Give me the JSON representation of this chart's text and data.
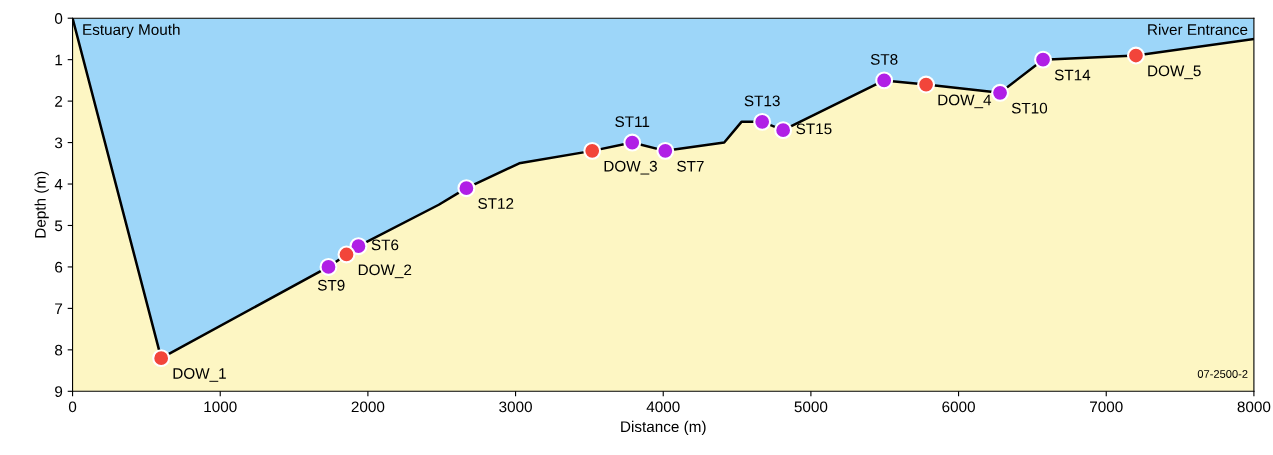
{
  "chart_data": {
    "type": "area",
    "xlabel": "Distance (m)",
    "ylabel": "Depth (m)",
    "xlim": [
      0,
      8000
    ],
    "ylim": [
      9,
      0
    ],
    "xticks": [
      0,
      1000,
      2000,
      3000,
      4000,
      5000,
      6000,
      7000,
      8000
    ],
    "yticks": [
      0,
      1,
      2,
      3,
      4,
      5,
      6,
      7,
      8,
      9
    ],
    "grid": false,
    "series": [
      {
        "color": "#9dd6f9",
        "x": [
          0,
          600,
          1733,
          1855,
          1936,
          2480,
          2667,
          3025,
          3519,
          3790,
          4014,
          4413,
          4530,
          4670,
          4812,
          5496,
          5780,
          6281,
          6572,
          7201,
          8000
        ],
        "values": [
          0,
          8.2,
          6.0,
          5.7,
          5.5,
          4.5,
          4.1,
          3.5,
          3.2,
          3.0,
          3.2,
          3.0,
          2.5,
          2.5,
          2.7,
          1.5,
          1.6,
          1.8,
          1.0,
          0.9,
          0.5
        ]
      },
      {
        "type": "scatter",
        "color": "#b01fe6",
        "x": [
          1733,
          1936,
          2667,
          3790,
          4014,
          4670,
          4812,
          5496,
          6281,
          6572
        ],
        "values": [
          6.0,
          5.5,
          4.1,
          3.0,
          3.2,
          2.5,
          2.7,
          1.5,
          1.8,
          1.0
        ]
      },
      {
        "type": "scatter",
        "color": "#f2453a",
        "x": [
          600,
          1855,
          3519,
          5780,
          7201
        ],
        "values": [
          8.2,
          5.7,
          3.2,
          1.6,
          0.9
        ]
      }
    ],
    "annotations": [
      "Estuary Mouth",
      "River Entrance",
      "07-2500-2",
      {
        "text": "ST9",
        "x": 1733,
        "y": 6.0
      },
      {
        "text": "ST6",
        "x": 1936,
        "y": 5.5
      },
      {
        "text": "ST12",
        "x": 2667,
        "y": 4.1
      },
      {
        "text": "ST11",
        "x": 3790,
        "y": 3.0
      },
      {
        "text": "ST7",
        "x": 4014,
        "y": 3.2
      },
      {
        "text": "ST13",
        "x": 4670,
        "y": 2.5
      },
      {
        "text": "ST15",
        "x": 4812,
        "y": 2.7
      },
      {
        "text": "ST8",
        "x": 5496,
        "y": 1.5
      },
      {
        "text": "ST10",
        "x": 6281,
        "y": 1.8
      },
      {
        "text": "ST14",
        "x": 6572,
        "y": 1.0
      },
      {
        "text": "DOW_1",
        "x": 600,
        "y": 8.2
      },
      {
        "text": "DOW_2",
        "x": 1855,
        "y": 5.7
      },
      {
        "text": "DOW_3",
        "x": 3519,
        "y": 3.2
      },
      {
        "text": "DOW_4",
        "x": 5780,
        "y": 1.6
      },
      {
        "text": "DOW_5",
        "x": 7201,
        "y": 0.9
      }
    ]
  }
}
